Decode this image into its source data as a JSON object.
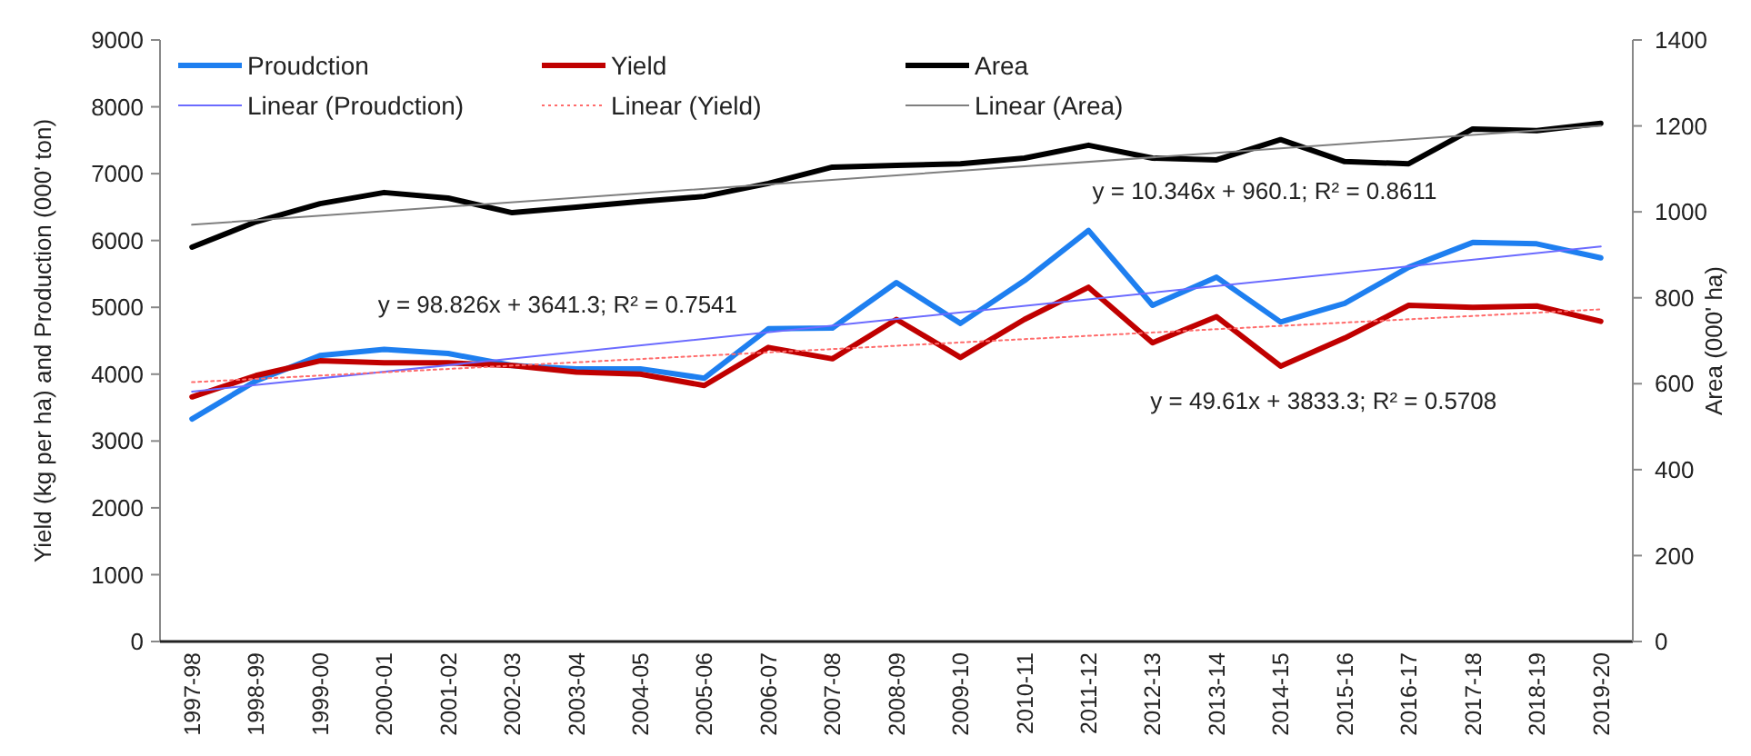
{
  "chart_data": {
    "type": "line",
    "ylabel": "Yield (kg  per ha) and Production (000' ton)",
    "y2label": "Area (000' ha)",
    "categories": [
      "1997-98",
      "1998-99",
      "1999-00",
      "2000-01",
      "2001-02",
      "2002-03",
      "2003-04",
      "2004-05",
      "2005-06",
      "2006-07",
      "2007-08",
      "2008-09",
      "2009-10",
      "2010-11",
      "2011-12",
      "2012-13",
      "2013-14",
      "2014-15",
      "2015-16",
      "2016-17",
      "2017-18",
      "2018-19",
      "2019-20"
    ],
    "series": [
      {
        "name": "Proudction",
        "color": "#1e7ff0",
        "values": [
          3330,
          3900,
          4280,
          4370,
          4310,
          4130,
          4080,
          4080,
          3940,
          4680,
          4690,
          5370,
          4760,
          5400,
          6150,
          5030,
          5450,
          4780,
          5060,
          5600,
          5970,
          5950,
          5740
        ]
      },
      {
        "name": "Yield",
        "color": "#c00000",
        "values": [
          3660,
          3980,
          4200,
          4170,
          4170,
          4130,
          4030,
          4000,
          3830,
          4400,
          4230,
          4820,
          4250,
          4820,
          5300,
          4470,
          4860,
          4120,
          4540,
          5030,
          5000,
          5020,
          4790
        ]
      },
      {
        "name": "Area",
        "color": "#000000",
        "axis": "y2",
        "values": [
          918,
          977,
          1019,
          1045,
          1032,
          998,
          1011,
          1024,
          1036,
          1066,
          1104,
          1108,
          1112,
          1125,
          1155,
          1125,
          1121,
          1168,
          1117,
          1112,
          1193,
          1189,
          1206
        ]
      },
      {
        "name": "Linear (Proudction)",
        "color": "#6b6bff",
        "x": [
          "1997-98",
          "2019-20"
        ],
        "values": [
          3740,
          5910
        ]
      },
      {
        "name": "Linear (Yield)",
        "color": "#ff6b6b",
        "line_style": "dotted",
        "x": [
          "1997-98",
          "2019-20"
        ],
        "values": [
          3880,
          4970
        ]
      },
      {
        "name": "Linear (Area)",
        "color": "#7f7f7f",
        "axis": "y2",
        "x": [
          "1997-98",
          "2019-20"
        ],
        "values": [
          970,
          1200
        ]
      }
    ],
    "ylim": [
      0,
      9000
    ],
    "yticks": [
      0,
      1000,
      2000,
      3000,
      4000,
      5000,
      6000,
      7000,
      8000,
      9000
    ],
    "y2lim": [
      0,
      1400
    ],
    "y2ticks": [
      0,
      200,
      400,
      600,
      800,
      1000,
      1200,
      1400
    ],
    "annotations": [
      "y = 98.826x + 3641.3; R² = 0.7541",
      "y = 10.346x + 960.1; R² = 0.8611",
      "y = 49.61x + 3833.3; R² = 0.5708"
    ],
    "legend": "top",
    "line_style": "solid",
    "marker": "none"
  }
}
